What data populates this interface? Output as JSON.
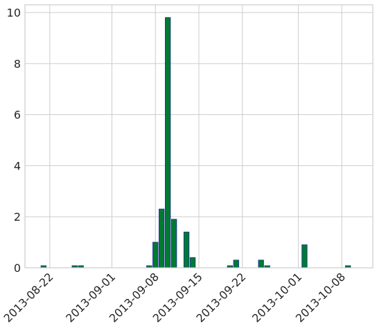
{
  "chart_data": {
    "type": "bar",
    "title": "",
    "xlabel": "",
    "ylabel": "",
    "x_axis_kind": "date",
    "xlim": [
      "2013-08-18",
      "2013-10-13"
    ],
    "ylim": [
      0,
      10.3
    ],
    "y_ticks": [
      0,
      2,
      4,
      6,
      8,
      10
    ],
    "x_ticks": [
      "2013-08-22",
      "2013-09-01",
      "2013-09-08",
      "2013-09-15",
      "2013-09-22",
      "2013-10-01",
      "2013-10-08"
    ],
    "grid": true,
    "legend": "none",
    "bar_fill_color": "#007a33",
    "bar_edge_color": "#1f3b8c",
    "bars": [
      {
        "date": "2013-08-21",
        "value": 0.08
      },
      {
        "date": "2013-08-26",
        "value": 0.08
      },
      {
        "date": "2013-08-27",
        "value": 0.08
      },
      {
        "date": "2013-09-07",
        "value": 0.08
      },
      {
        "date": "2013-09-08",
        "value": 1.0
      },
      {
        "date": "2013-09-09",
        "value": 2.3
      },
      {
        "date": "2013-09-10",
        "value": 9.8
      },
      {
        "date": "2013-09-11",
        "value": 1.9
      },
      {
        "date": "2013-09-13",
        "value": 1.4
      },
      {
        "date": "2013-09-14",
        "value": 0.4
      },
      {
        "date": "2013-09-20",
        "value": 0.08
      },
      {
        "date": "2013-09-21",
        "value": 0.3
      },
      {
        "date": "2013-09-25",
        "value": 0.3
      },
      {
        "date": "2013-09-26",
        "value": 0.08
      },
      {
        "date": "2013-10-02",
        "value": 0.9
      },
      {
        "date": "2013-10-09",
        "value": 0.08
      }
    ]
  }
}
